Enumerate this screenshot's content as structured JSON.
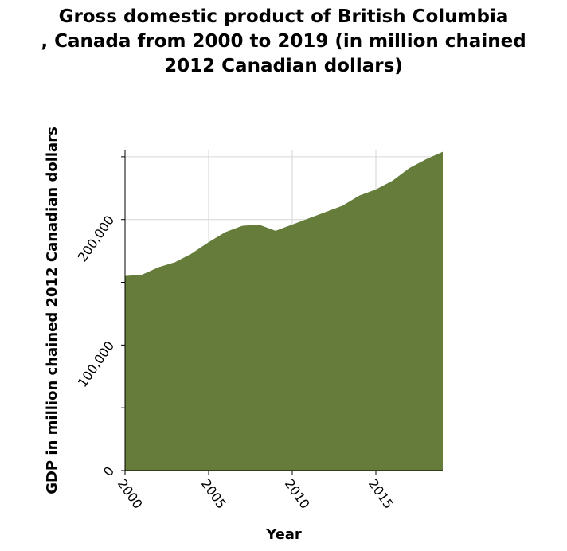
{
  "chart_data": {
    "type": "area",
    "title_lines": [
      "Gross domestic product of British Columbia",
      ", Canada from 2000 to 2019 (in million chained",
      "2012 Canadian dollars)"
    ],
    "xlabel": "Year",
    "ylabel": "GDP in million chained 2012 Canadian dollars",
    "x": [
      2000,
      2001,
      2002,
      2003,
      2004,
      2005,
      2006,
      2007,
      2008,
      2009,
      2010,
      2011,
      2012,
      2013,
      2014,
      2015,
      2016,
      2017,
      2018,
      2019
    ],
    "values": [
      155000,
      156000,
      162000,
      166000,
      173000,
      182000,
      190000,
      195000,
      196000,
      191000,
      196000,
      201000,
      206000,
      211000,
      219000,
      224000,
      231000,
      241000,
      248000,
      254000
    ],
    "xlim": [
      2000,
      2019
    ],
    "ylim": [
      0,
      255000
    ],
    "x_ticks": [
      2000,
      2005,
      2010,
      2015
    ],
    "x_tick_labels": [
      "2000",
      "2005",
      "2010",
      "2015"
    ],
    "y_ticks": [
      0,
      50000,
      100000,
      150000,
      200000,
      250000
    ],
    "y_tick_labels": [
      "0",
      "",
      "100,000",
      "",
      "200,000",
      ""
    ],
    "grid": true,
    "fill_color": "#667c3a",
    "grid_color": "#d6d6d6"
  }
}
